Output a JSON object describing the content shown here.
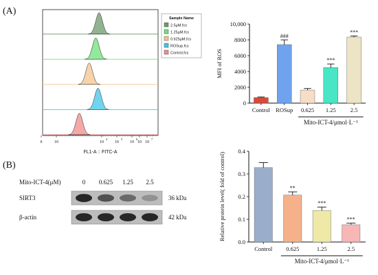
{
  "panels": {
    "a_label": "(A)",
    "b_label": "(B)"
  },
  "flow": {
    "legend_title": "Sample Name",
    "samples": [
      {
        "name": "2.5μM.fcs",
        "color": "#6c9a6c",
        "peak": 4.2
      },
      {
        "name": "1.25μM.fcs",
        "color": "#6ee27a",
        "peak": 3.9
      },
      {
        "name": "0.625μM.fcs",
        "color": "#f4c48c",
        "peak": 3.3
      },
      {
        "name": "ROSup.fcs",
        "color": "#40c6ea",
        "peak": 4.1
      },
      {
        "name": "Control.fcs",
        "color": "#f08c8c",
        "peak": 2.4
      }
    ],
    "x_tick_labels": [
      "0",
      "10",
      "10",
      "10",
      "10",
      "10",
      "10"
    ],
    "x_tick_exponents": [
      "",
      "",
      "4",
      "5",
      "6",
      "",
      "7"
    ],
    "xlabel": "FL1-A :: FITC-A"
  },
  "chart_data": [
    {
      "type": "bar",
      "title": "",
      "categories": [
        "Control",
        "ROSup",
        "0.625",
        "1.25",
        "2.5"
      ],
      "values": [
        700,
        7400,
        1650,
        4500,
        8350
      ],
      "errors": [
        80,
        600,
        200,
        450,
        150
      ],
      "colors": [
        "#d94a3a",
        "#6fa3ee",
        "#f7ddc6",
        "#49e6c6",
        "#ece4c4"
      ],
      "annotations": [
        "",
        "###",
        "",
        "***",
        "***"
      ],
      "ylabel": "MFI of ROS",
      "ylim": [
        0,
        10000
      ],
      "yticks": [
        0,
        2000,
        4000,
        6000,
        8000,
        10000
      ],
      "ytick_labels": [
        "0",
        "2000",
        "4000",
        "6000",
        "8000",
        "10,000"
      ],
      "xlabel": "Mito-ICT-4/μmol·L⁻¹",
      "grid": false,
      "legend": "none"
    },
    {
      "type": "bar",
      "title": "",
      "categories": [
        "Control",
        "0.625",
        "1.25",
        "2.5"
      ],
      "values": [
        0.328,
        0.207,
        0.139,
        0.076
      ],
      "errors": [
        0.022,
        0.014,
        0.015,
        0.007
      ],
      "colors": [
        "#9aaecb",
        "#f5b28a",
        "#efe9a8",
        "#f9b6b6"
      ],
      "annotations": [
        "",
        "**",
        "***",
        "***"
      ],
      "ylabel": "Relative protein level( fold of control)",
      "ylim": [
        0,
        0.4
      ],
      "yticks": [
        0.0,
        0.1,
        0.2,
        0.3,
        0.4
      ],
      "ytick_labels": [
        "0.0",
        "0.1",
        "0.2",
        "0.3",
        "0.4"
      ],
      "xlabel": "Mito-ICT-4/μmol·L⁻¹",
      "grid": false,
      "legend": "none"
    }
  ],
  "blot": {
    "treatment_label": "Mito-ICT-4(μM)",
    "lanes": [
      "0",
      "0.625",
      "1.25",
      "2.5"
    ],
    "rows": [
      {
        "protein": "SIRT3",
        "size": "36 kDa",
        "intensities": [
          0.95,
          0.7,
          0.55,
          0.32
        ]
      },
      {
        "protein": "β-actin",
        "size": "42 kDa",
        "intensities": [
          0.95,
          0.95,
          0.95,
          0.95
        ]
      }
    ]
  }
}
